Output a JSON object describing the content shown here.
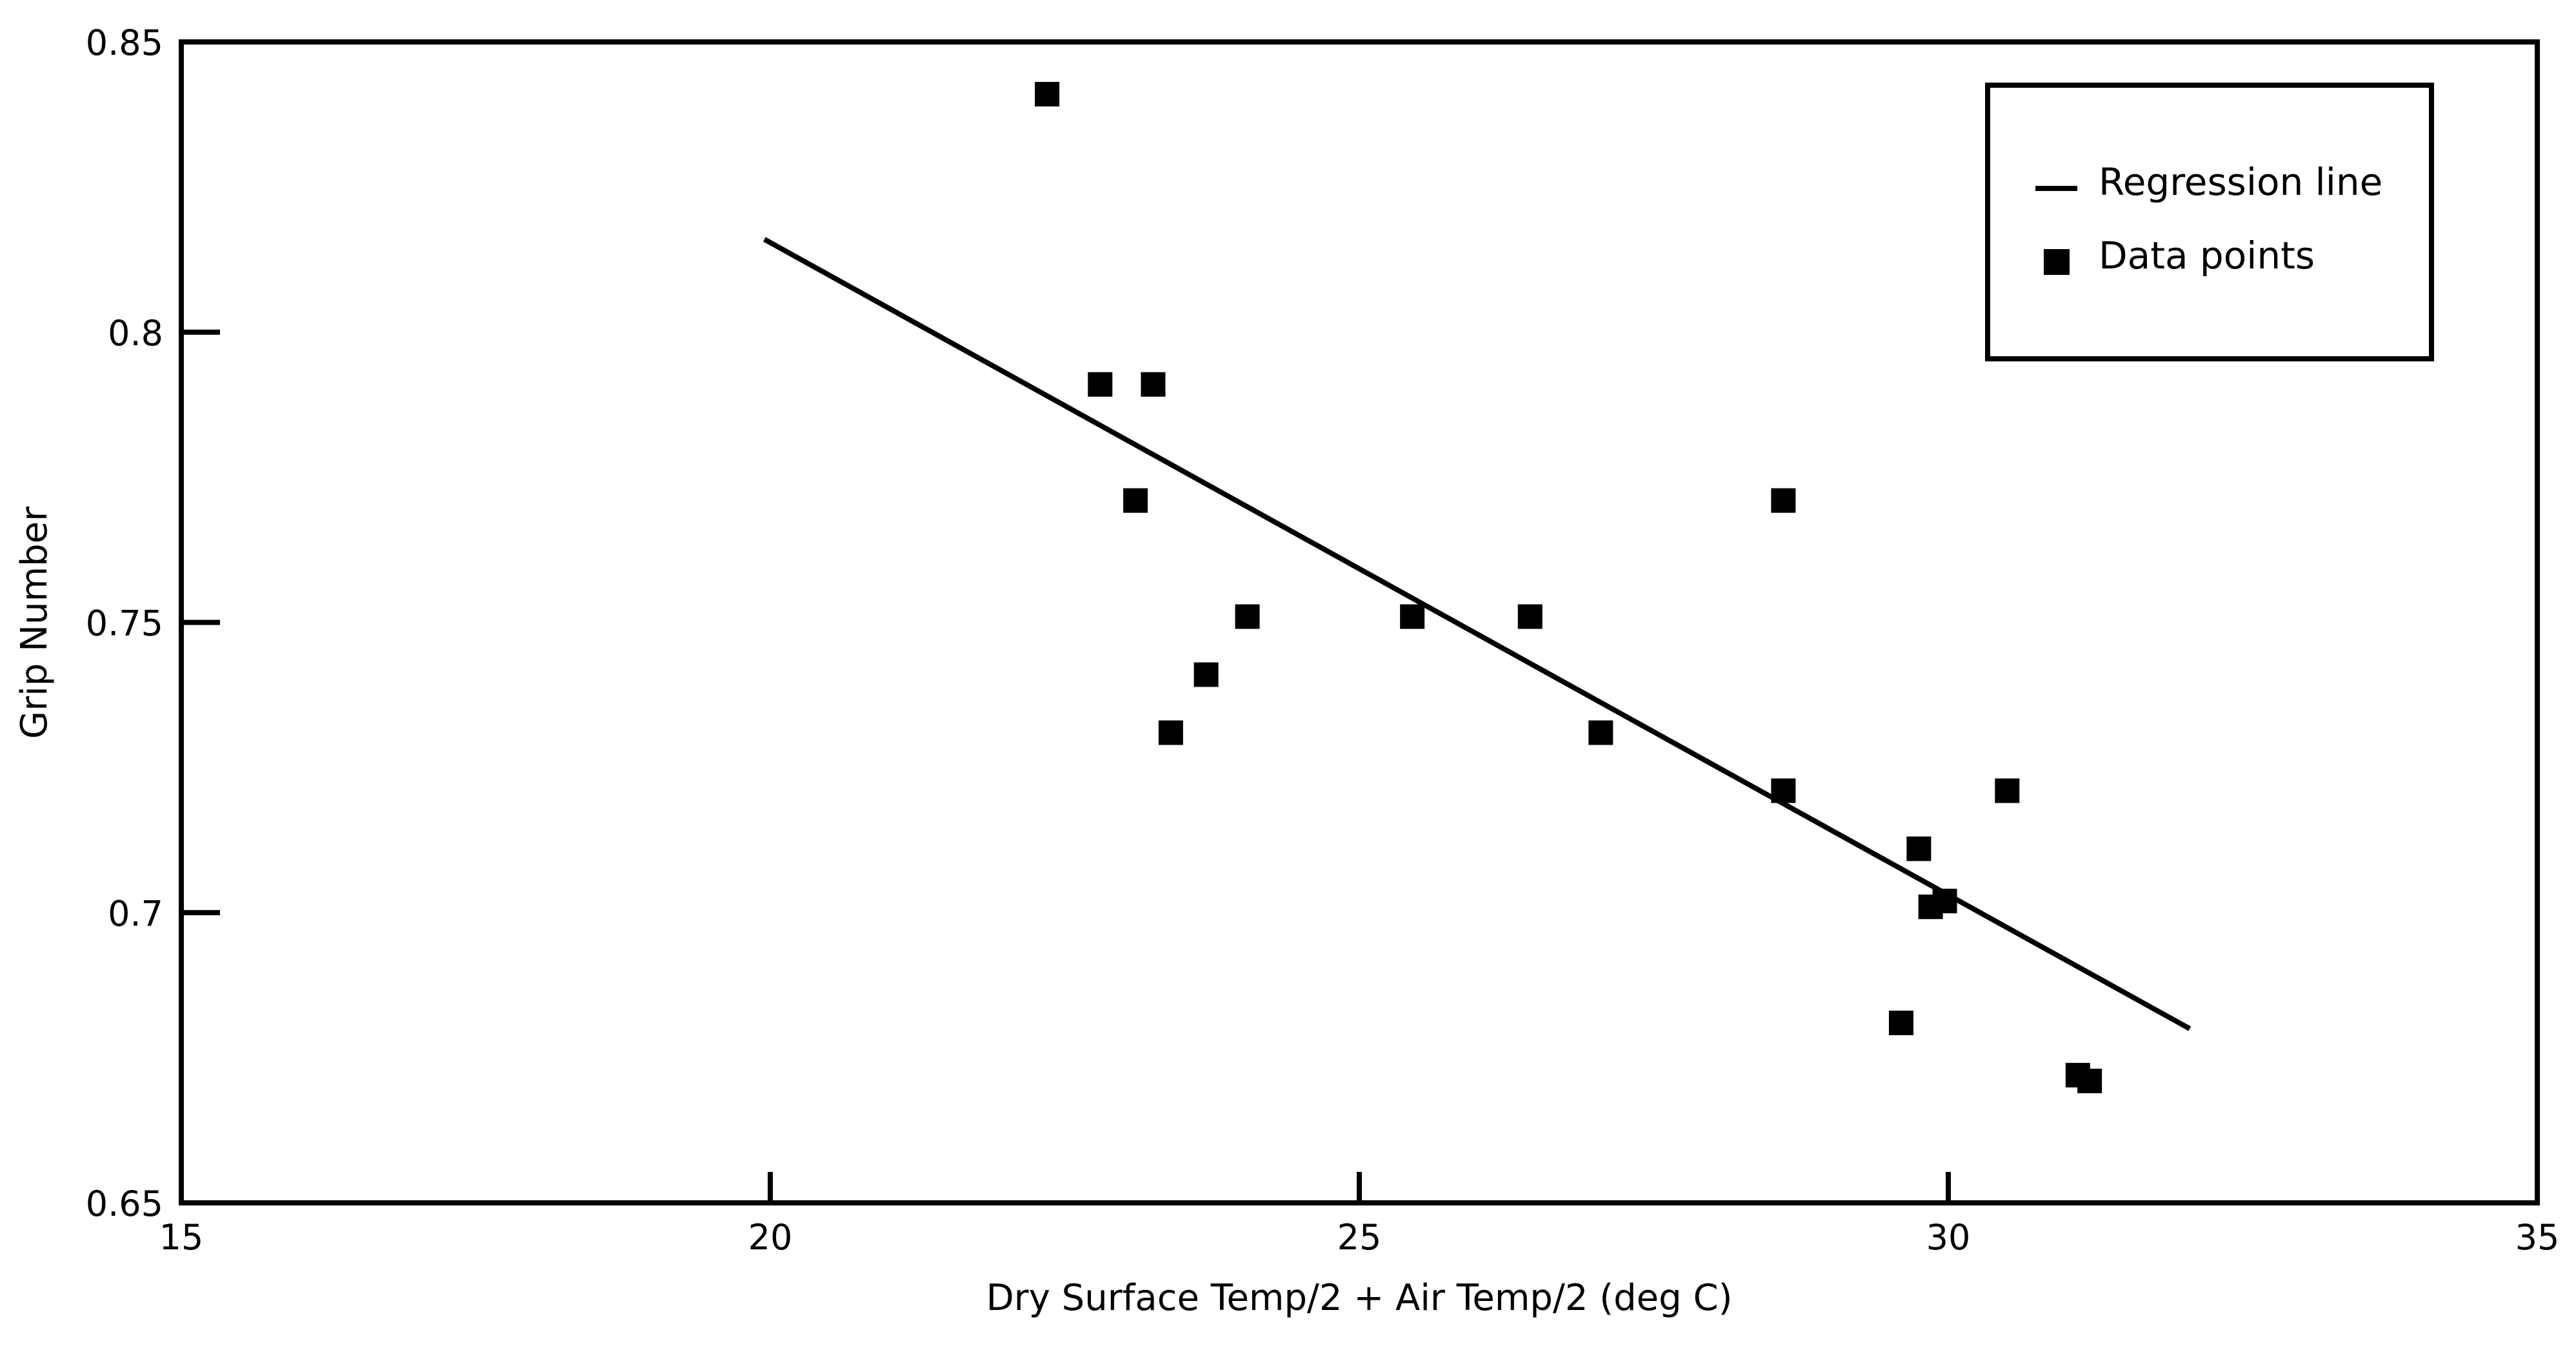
{
  "chart_data": {
    "type": "scatter",
    "title": "",
    "xlabel": "Dry Surface Temp/2 + Air Temp/2 (deg C)",
    "ylabel": "Grip Number",
    "xlim": [
      15,
      35
    ],
    "ylim": [
      0.65,
      0.85
    ],
    "x_ticks": [
      15,
      20,
      25,
      30,
      35
    ],
    "x_tick_labels": [
      "15",
      "20",
      "25",
      "30",
      "35"
    ],
    "y_ticks": [
      0.65,
      0.7,
      0.75,
      0.8,
      0.85
    ],
    "y_tick_labels": [
      "0.65",
      "0.7",
      "0.75",
      "0.8",
      "0.85"
    ],
    "grid": false,
    "legend_position": "top-right",
    "series": [
      {
        "name": "Data points",
        "kind": "scatter",
        "marker": "square",
        "color": "#000000",
        "points": [
          [
            22.35,
            0.841
          ],
          [
            22.8,
            0.791
          ],
          [
            23.25,
            0.791
          ],
          [
            23.1,
            0.771
          ],
          [
            23.4,
            0.731
          ],
          [
            23.7,
            0.741
          ],
          [
            24.05,
            0.751
          ],
          [
            25.45,
            0.751
          ],
          [
            26.45,
            0.751
          ],
          [
            27.05,
            0.731
          ],
          [
            28.6,
            0.771
          ],
          [
            28.6,
            0.721
          ],
          [
            29.75,
            0.711
          ],
          [
            29.85,
            0.701
          ],
          [
            29.97,
            0.702
          ],
          [
            30.5,
            0.721
          ],
          [
            29.6,
            0.681
          ],
          [
            31.1,
            0.672
          ],
          [
            31.2,
            0.671
          ]
        ]
      },
      {
        "name": "Regression line",
        "kind": "line",
        "color": "#000000",
        "points": [
          [
            19.95,
            0.816
          ],
          [
            32.05,
            0.68
          ]
        ]
      }
    ]
  }
}
